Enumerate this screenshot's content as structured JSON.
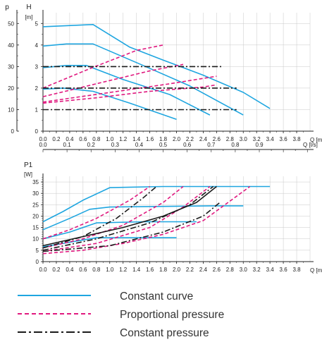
{
  "colors": {
    "constant_curve": "#1fa6e0",
    "proportional_pressure": "#e0197f",
    "constant_pressure": "#1a1a1a",
    "grid": "#c8c8c8",
    "axis": "#222222"
  },
  "legend": [
    {
      "label": "Constant curve",
      "style": "solid",
      "color": "#1fa6e0"
    },
    {
      "label": "Proportional pressure",
      "style": "dashed",
      "color": "#e0197f"
    },
    {
      "label": "Constant pressure",
      "style": "dashdot",
      "color": "#1a1a1a"
    }
  ],
  "chart_data": [
    {
      "type": "line",
      "title": "",
      "ylabel_left": "H",
      "ylabel_left_unit": "[m]",
      "ylabel_far_left": "p",
      "xlabel": "Q [m³/h]",
      "xlim": [
        0,
        4.0
      ],
      "ylim": [
        0,
        5.5
      ],
      "ylim_far_left": [
        0,
        55
      ],
      "xticks": [
        "0.0",
        "0.2",
        "0.4",
        "0.6",
        "0.8",
        "1.0",
        "1.2",
        "1.4",
        "1.6",
        "1.8",
        "2.0",
        "2.2",
        "2.4",
        "2.6",
        "2.8",
        "3.0",
        "3.2",
        "3.4",
        "3.6",
        "3.8"
      ],
      "yticks_left": [
        "0",
        "1",
        "2",
        "3",
        "4",
        "5"
      ],
      "yticks_far_left": [
        "0",
        "10",
        "20",
        "30",
        "40",
        "50"
      ],
      "grid": true,
      "series": [
        {
          "style": "constant_curve",
          "x": [
            0,
            0.75,
            1.3,
            1.8,
            2.4,
            3.0,
            3.4
          ],
          "y": [
            4.85,
            4.95,
            3.9,
            3.3,
            2.6,
            1.8,
            1.05
          ]
        },
        {
          "style": "constant_curve",
          "x": [
            0,
            0.35,
            0.75,
            1.5,
            2.2,
            3.0
          ],
          "y": [
            3.95,
            4.05,
            4.05,
            3.05,
            2.1,
            0.75
          ]
        },
        {
          "style": "constant_curve",
          "x": [
            0,
            0.35,
            0.65,
            1.2,
            1.9,
            2.5
          ],
          "y": [
            2.95,
            3.05,
            3.05,
            2.4,
            1.7,
            0.75
          ]
        },
        {
          "style": "constant_curve",
          "x": [
            0,
            0.3,
            0.75,
            1.3,
            2.0
          ],
          "y": [
            1.95,
            2.0,
            1.85,
            1.3,
            0.55
          ]
        },
        {
          "style": "proportional_pressure",
          "x": [
            0,
            0.7,
            1.4,
            1.8
          ],
          "y": [
            2.0,
            2.9,
            3.75,
            4.0
          ]
        },
        {
          "style": "proportional_pressure",
          "x": [
            0,
            0.8,
            1.6,
            2.1
          ],
          "y": [
            1.6,
            2.2,
            2.8,
            3.1
          ]
        },
        {
          "style": "proportional_pressure",
          "x": [
            0,
            0.9,
            1.9,
            2.6
          ],
          "y": [
            1.35,
            1.75,
            2.2,
            2.55
          ]
        },
        {
          "style": "proportional_pressure",
          "x": [
            0,
            0.8,
            1.6,
            2.4,
            2.6
          ],
          "y": [
            1.3,
            1.55,
            1.85,
            2.05,
            2.15
          ]
        },
        {
          "style": "constant_pressure",
          "x": [
            0,
            2.7
          ],
          "y": [
            3.0,
            3.0
          ]
        },
        {
          "style": "constant_pressure",
          "x": [
            0,
            2.9
          ],
          "y": [
            2.0,
            2.0
          ]
        },
        {
          "style": "constant_pressure",
          "x": [
            0,
            2.9
          ],
          "y": [
            1.0,
            1.0
          ]
        }
      ]
    },
    {
      "type": "line",
      "title": "",
      "xlabel_top": "Q [l/s]",
      "xlim_top": [
        0,
        1.111
      ],
      "xticks_top": [
        "0.0",
        "0.1",
        "0.2",
        "0.3",
        "0.4",
        "0.5",
        "0.6",
        "0.7",
        "0.8",
        "0.9"
      ]
    },
    {
      "type": "line",
      "title": "",
      "ylabel": "P1",
      "ylabel_unit": "[W]",
      "xlabel": "Q [m³/h]",
      "xlim": [
        0,
        4.0
      ],
      "ylim": [
        0,
        37.5
      ],
      "xticks": [
        "0.0",
        "0.2",
        "0.4",
        "0.6",
        "0.8",
        "1.0",
        "1.2",
        "1.4",
        "1.6",
        "1.8",
        "2.0",
        "2.2",
        "2.4",
        "2.6",
        "2.8",
        "3.0",
        "3.2",
        "3.4",
        "3.6",
        "3.8"
      ],
      "yticks": [
        "0",
        "5",
        "10",
        "15",
        "20",
        "25",
        "30",
        "35"
      ],
      "grid": true,
      "series": [
        {
          "style": "constant_curve",
          "x": [
            0,
            0.3,
            0.6,
            1.0,
            1.8,
            3.4
          ],
          "y": [
            17.5,
            22,
            27,
            32.5,
            33,
            33
          ]
        },
        {
          "style": "constant_curve",
          "x": [
            0,
            0.4,
            0.7,
            1.0,
            2.5,
            3.0
          ],
          "y": [
            14,
            19,
            23,
            24,
            24.5,
            24.5
          ]
        },
        {
          "style": "constant_curve",
          "x": [
            0,
            0.4,
            0.8,
            1.5,
            2.3
          ],
          "y": [
            10,
            13,
            17,
            17.5,
            17.5
          ]
        },
        {
          "style": "constant_curve",
          "x": [
            0,
            0.4,
            0.8,
            1.5,
            2.0
          ],
          "y": [
            6.5,
            8.5,
            10.5,
            10.5,
            10.5
          ]
        },
        {
          "style": "proportional_pressure",
          "x": [
            0,
            0.4,
            0.8,
            1.3,
            1.6
          ],
          "y": [
            10,
            14,
            19,
            27,
            33
          ]
        },
        {
          "style": "proportional_pressure",
          "x": [
            0,
            0.6,
            1.2,
            1.8,
            2.1
          ],
          "y": [
            6,
            10,
            16,
            26,
            33
          ]
        },
        {
          "style": "proportional_pressure",
          "x": [
            0,
            0.8,
            1.6,
            2.1,
            2.5
          ],
          "y": [
            4.5,
            8,
            15,
            24,
            33
          ]
        },
        {
          "style": "proportional_pressure",
          "x": [
            0,
            0.6,
            1.2,
            1.8,
            2.4,
            3.1
          ],
          "y": [
            3.5,
            5,
            8,
            12,
            18,
            33
          ]
        },
        {
          "style": "constant_pressure",
          "x": [
            0,
            0.6,
            1.1,
            1.5,
            1.7
          ],
          "y": [
            6,
            11,
            19,
            28,
            33
          ]
        },
        {
          "style": "constant_pressure",
          "x": [
            0,
            0.8,
            1.6,
            2.2,
            2.55
          ],
          "y": [
            5,
            10,
            17,
            25,
            33
          ]
        },
        {
          "style": "constant_pressure",
          "x": [
            0,
            1.0,
            1.8,
            2.4,
            2.65
          ],
          "y": [
            4.5,
            7,
            13,
            20,
            26
          ]
        },
        {
          "style": "constant_pressure_solid",
          "x": [
            0,
            0.6,
            1.2,
            1.8,
            2.3,
            2.6
          ],
          "y": [
            7,
            11,
            15,
            20,
            26,
            33
          ]
        }
      ]
    }
  ]
}
